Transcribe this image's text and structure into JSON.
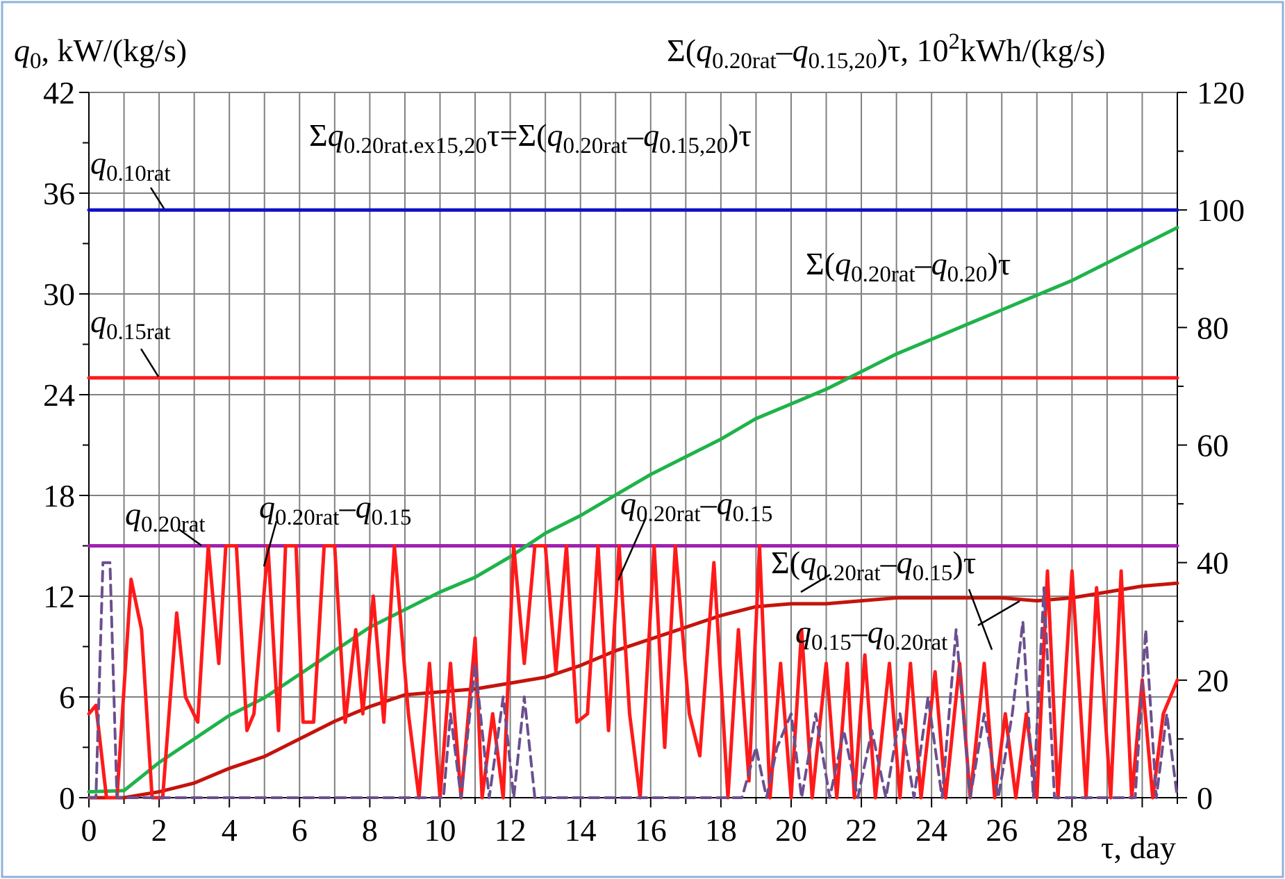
{
  "chart_data": {
    "type": "line",
    "title": "",
    "y_axis_left": {
      "label_var": "q",
      "label_sub": "0",
      "label_units": ", kW/(kg/s)",
      "range": [
        0,
        42
      ],
      "ticks": [
        0,
        6,
        12,
        18,
        24,
        30,
        36,
        42
      ]
    },
    "y_axis_right": {
      "label_prefix": "Σ(",
      "label_var1": "q",
      "label_sub1": "0.20rat",
      "label_minus": "–",
      "label_var2": "q",
      "label_sub2": "0.15,20",
      "label_suffix": ")τ,  10",
      "label_sup": "2",
      "label_units": "kWh/(kg/s)",
      "range": [
        0,
        120
      ],
      "ticks": [
        0,
        20,
        40,
        60,
        80,
        100,
        120
      ]
    },
    "x_axis": {
      "label": "τ, day",
      "range": [
        0,
        31
      ],
      "ticks": [
        0,
        2,
        4,
        6,
        8,
        10,
        12,
        14,
        16,
        18,
        20,
        22,
        24,
        26,
        28
      ]
    },
    "grid": true,
    "colors": {
      "blue": "#1010c8",
      "red": "#ff1a1a",
      "magenta": "#a020b0",
      "green": "#1fb34a",
      "darkred": "#c4140c",
      "dashed": "#6b4f8f",
      "border": "#8fb3d9"
    },
    "series": [
      {
        "axis": "left",
        "color": "blue",
        "style": "solid",
        "x": [
          0,
          31
        ],
        "y": [
          35,
          35
        ]
      },
      {
        "axis": "left",
        "color": "red",
        "style": "solid",
        "x": [
          0,
          31
        ],
        "y": [
          25,
          25
        ]
      },
      {
        "axis": "left",
        "color": "magenta",
        "style": "solid",
        "x": [
          0,
          31
        ],
        "y": [
          15,
          15
        ]
      },
      {
        "axis": "right",
        "color": "green",
        "style": "solid",
        "x": [
          0,
          1,
          2,
          3,
          4,
          5,
          6,
          7,
          8,
          9,
          10,
          11,
          12,
          13,
          14,
          15,
          16,
          17,
          18,
          19,
          20,
          21,
          22,
          23,
          24,
          25,
          26,
          27,
          28,
          29,
          30,
          31
        ],
        "y": [
          1,
          1.2,
          6,
          10,
          14,
          17,
          21,
          25,
          29,
          32,
          35,
          37.5,
          41,
          45,
          48,
          51.5,
          55,
          58,
          61,
          64.5,
          67,
          69.5,
          72.5,
          75.5,
          78,
          80.5,
          83,
          85.5,
          88,
          91,
          94,
          97
        ]
      },
      {
        "axis": "right",
        "color": "darkred",
        "style": "solid",
        "x": [
          0,
          1,
          2,
          3,
          4,
          5,
          6,
          7,
          8,
          9,
          10,
          11,
          12,
          13,
          14,
          15,
          16,
          17,
          18,
          19,
          20,
          21,
          22,
          23,
          24,
          25,
          26,
          27,
          28,
          29,
          30,
          31
        ],
        "y": [
          0,
          0,
          1,
          2.5,
          5,
          7,
          10,
          13,
          15.5,
          17.5,
          18,
          18.5,
          19.5,
          20.5,
          22.5,
          25,
          27,
          29,
          31,
          32.5,
          33,
          33,
          33.5,
          34,
          34,
          34,
          34,
          33.5,
          34,
          35,
          36,
          36.5
        ]
      },
      {
        "axis": "left",
        "color": "red",
        "style": "solid",
        "x": [
          0,
          0.2,
          0.5,
          0.8,
          1.2,
          1.5,
          1.8,
          2.1,
          2.5,
          2.75,
          3.1,
          3.4,
          3.7,
          3.9,
          4.2,
          4.5,
          4.7,
          5.1,
          5.4,
          5.6,
          5.9,
          6.1,
          6.4,
          6.7,
          7,
          7.3,
          7.6,
          7.8,
          8.1,
          8.4,
          8.7,
          9.1,
          9.4,
          9.7,
          10,
          10.3,
          10.6,
          11,
          11.2,
          11.5,
          11.8,
          12.1,
          12.4,
          12.7,
          13,
          13.3,
          13.6,
          13.9,
          14.2,
          14.5,
          14.8,
          15.1,
          15.4,
          15.7,
          16.1,
          16.4,
          16.7,
          17.1,
          17.4,
          17.8,
          18.2,
          18.5,
          18.8,
          19.1,
          19.4,
          19.7,
          20,
          20.3,
          20.6,
          21,
          21.3,
          21.6,
          21.8,
          22.1,
          22.4,
          22.8,
          23.1,
          23.4,
          23.7,
          24.1,
          24.4,
          24.8,
          25.1,
          25.5,
          25.8,
          26.1,
          26.4,
          26.7,
          27,
          27.3,
          27.6,
          28,
          28.4,
          28.7,
          29.1,
          29.4,
          29.7,
          30,
          30.3,
          30.6,
          31
        ],
        "y": [
          5,
          5.5,
          0,
          0,
          13,
          10,
          0,
          0,
          11,
          6,
          4.5,
          15,
          8,
          15,
          15,
          4,
          5,
          15,
          4,
          15,
          15,
          4.5,
          4.5,
          15,
          15,
          4.5,
          10,
          5,
          12,
          4.5,
          15,
          5,
          0,
          8,
          0,
          8,
          0,
          9.5,
          0,
          5,
          0,
          15,
          8,
          15,
          15,
          7.5,
          15,
          4.5,
          5,
          15,
          4,
          15,
          5,
          0,
          15,
          3,
          15,
          5,
          2.5,
          14,
          0,
          10,
          1,
          15,
          0,
          8,
          0,
          10,
          0,
          8,
          0,
          8,
          0,
          8.5,
          0,
          8,
          0,
          8,
          0,
          7.5,
          0,
          8,
          0,
          8,
          0,
          5,
          0,
          5,
          0,
          13.5,
          0,
          13.5,
          0,
          12.5,
          0,
          13.5,
          0,
          7,
          0,
          5,
          7
        ]
      },
      {
        "axis": "left",
        "color": "dashed",
        "style": "dashed",
        "x": [
          0,
          0.2,
          0.4,
          0.6,
          0.8,
          1.1,
          1.4,
          10.1,
          10.3,
          10.6,
          11,
          11.4,
          11.8,
          12.1,
          12.4,
          12.7,
          18.6,
          19,
          19.3,
          19.6,
          20,
          20.3,
          20.7,
          21.1,
          21.5,
          21.9,
          22.3,
          22.7,
          23.1,
          23.5,
          23.9,
          24.3,
          24.7,
          25.1,
          25.5,
          25.9,
          26.3,
          26.6,
          26.9,
          27.2,
          27.5,
          27.8,
          29.8,
          30.1,
          30.4,
          30.7,
          31
        ],
        "y": [
          0,
          0,
          14,
          14,
          0,
          0,
          0,
          0,
          5,
          0,
          8,
          0,
          6,
          0,
          6,
          0,
          0,
          3,
          0,
          3,
          5,
          0,
          5,
          0,
          4,
          0,
          4,
          0,
          5,
          0,
          6,
          0,
          10,
          0,
          5,
          0,
          5,
          10.5,
          0,
          12.5,
          0,
          0,
          0,
          10,
          0,
          5,
          0
        ]
      }
    ],
    "annotations": [
      {
        "id": "sum-eq",
        "parts": [
          "Σ",
          "q",
          "0.20rat.ex15,20",
          "τ=Σ(",
          "q",
          "0.20rat",
          "–",
          "q",
          "0.15,20",
          ")τ"
        ]
      },
      {
        "id": "q010rat",
        "parts": [
          "q",
          "0.10rat"
        ]
      },
      {
        "id": "q015rat",
        "parts": [
          "q",
          "0.15rat"
        ]
      },
      {
        "id": "q020rat",
        "parts": [
          "q",
          "0.20rat"
        ]
      },
      {
        "id": "diff-left",
        "parts": [
          "q",
          "0.20rat",
          "–",
          "q",
          "0.15"
        ]
      },
      {
        "id": "diff-mid",
        "parts": [
          "q",
          "0.20rat",
          "–",
          "q",
          "0.15"
        ]
      },
      {
        "id": "sum-green",
        "parts": [
          "Σ(",
          "q",
          "0.20rat",
          "–",
          "q",
          "0.20",
          ")τ"
        ]
      },
      {
        "id": "sum-darkred",
        "parts": [
          "Σ(",
          "q",
          "0.20rat",
          "–",
          "q",
          "0.15",
          ")τ"
        ]
      },
      {
        "id": "neg-diff",
        "parts": [
          "q",
          "0.15",
          "–",
          "q",
          "0.20rat"
        ]
      }
    ]
  }
}
